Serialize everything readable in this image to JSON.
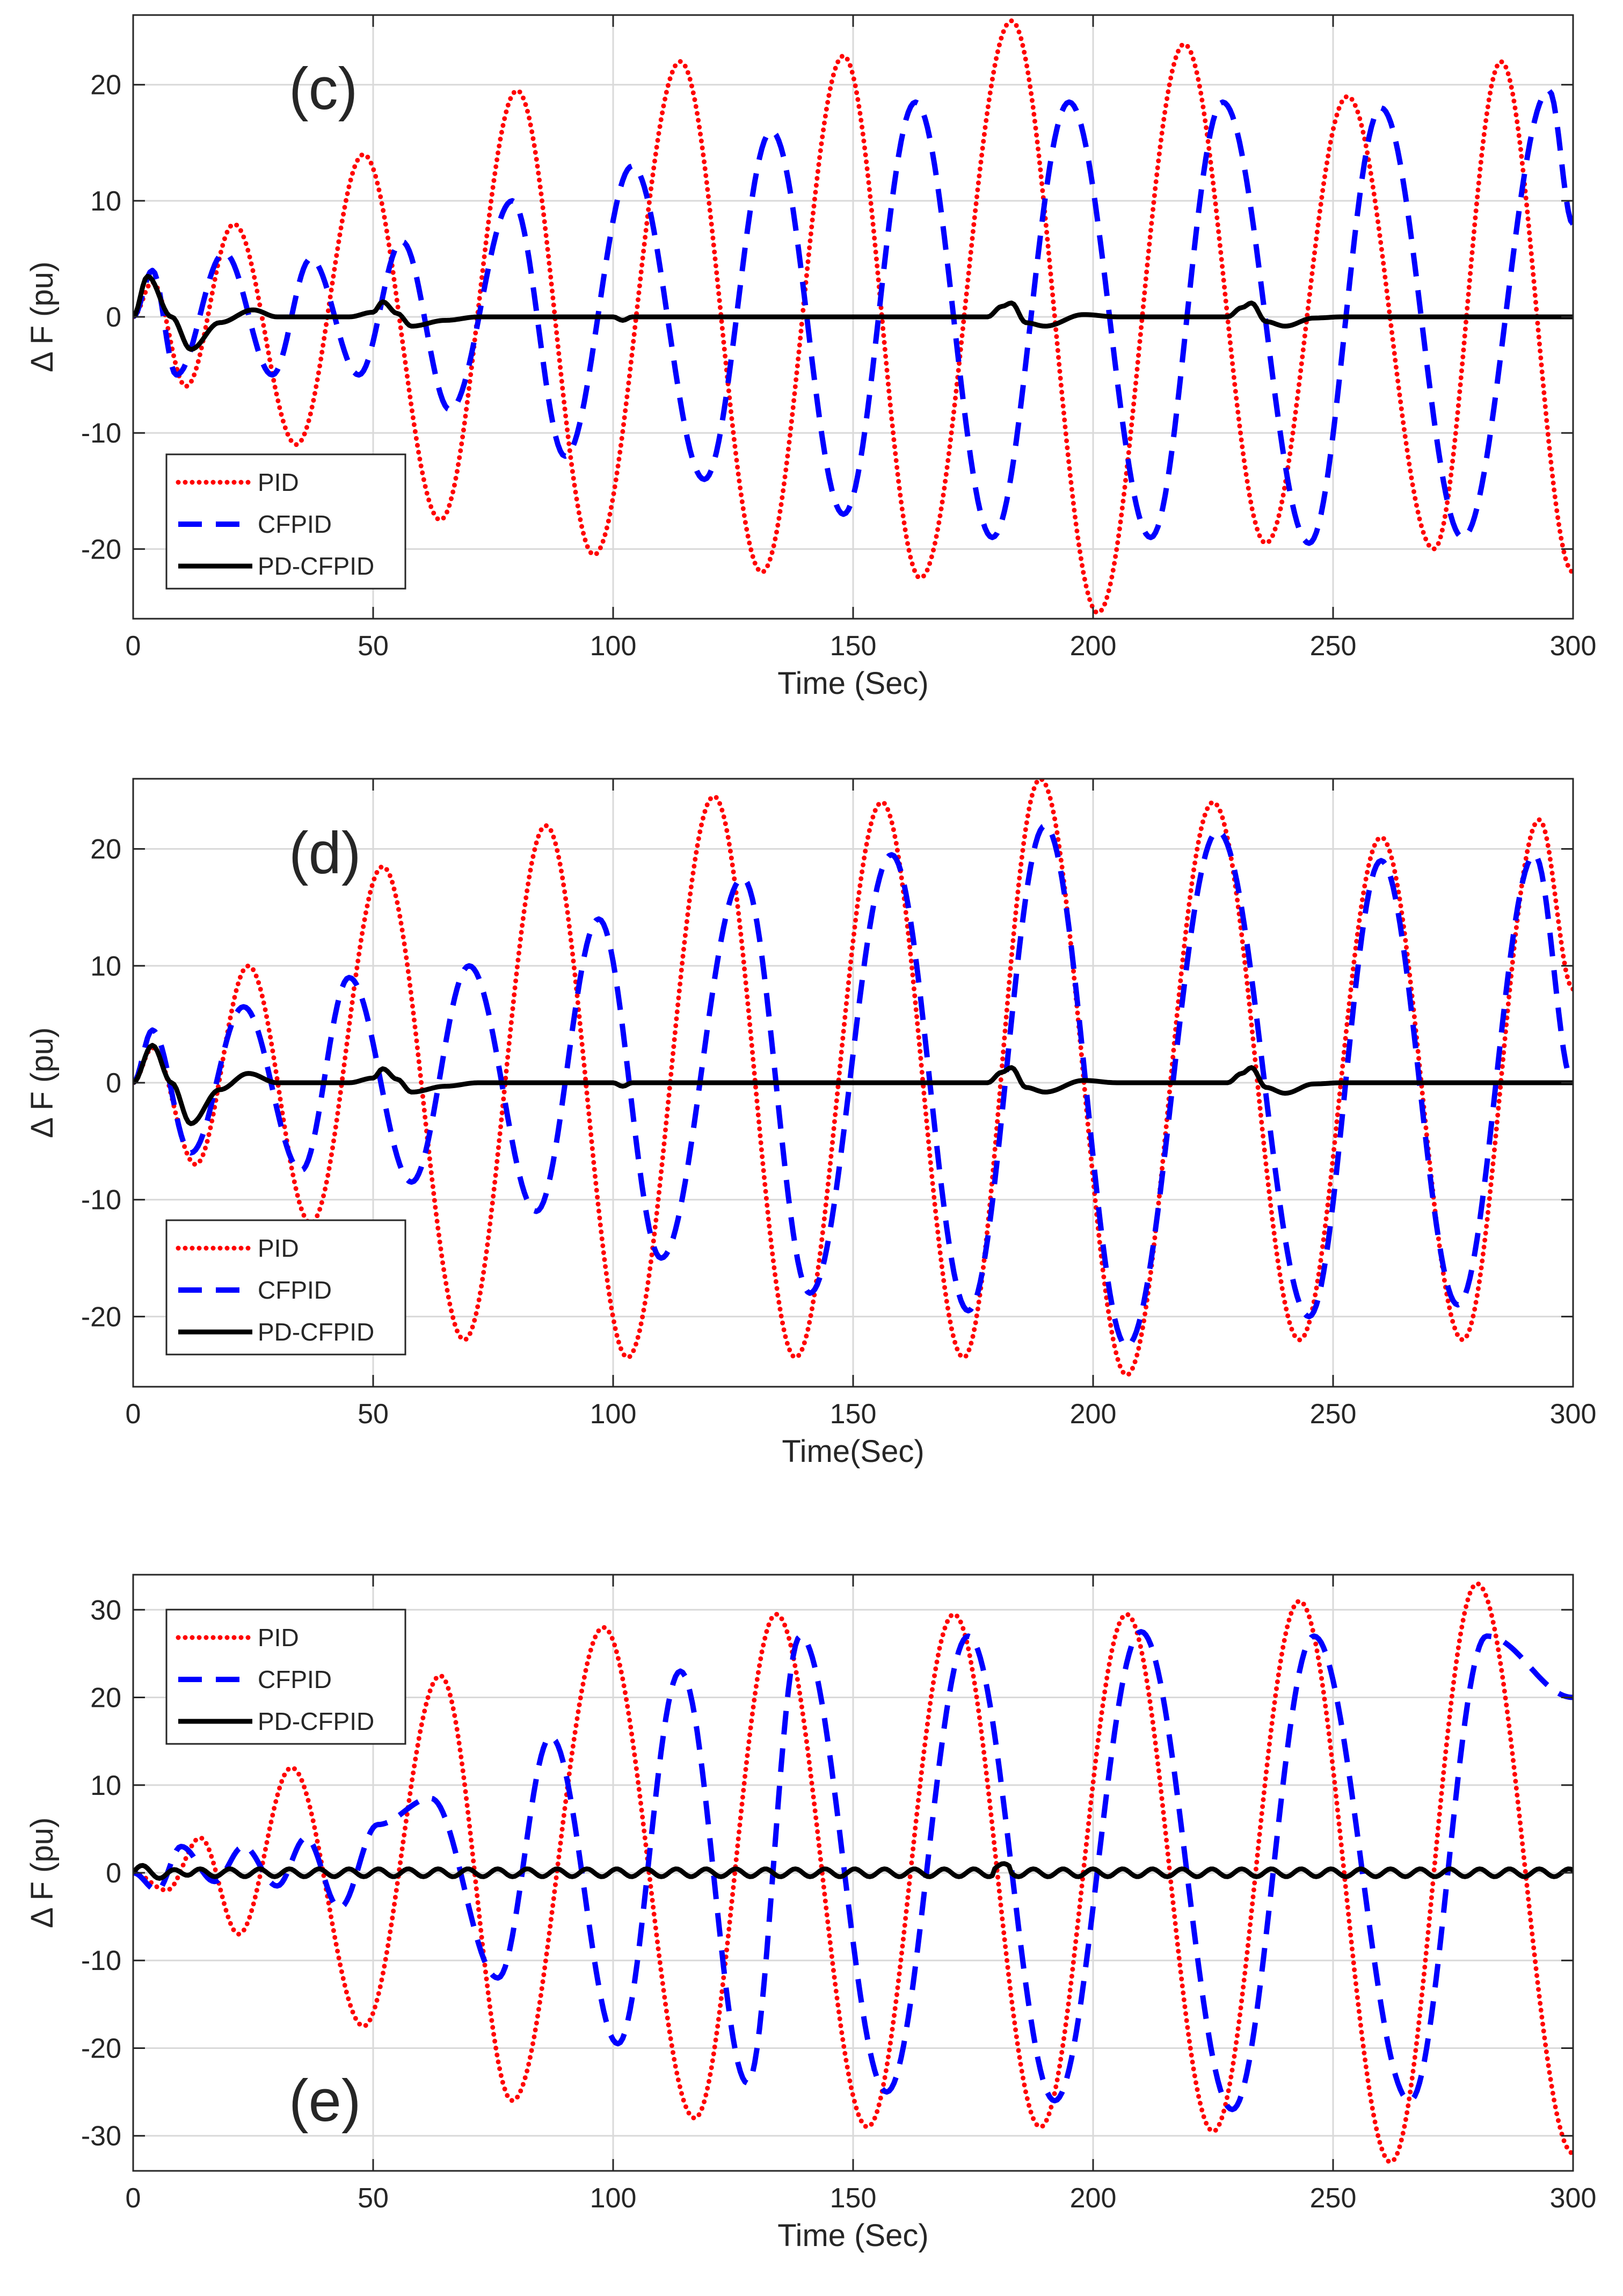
{
  "colors": {
    "pid": "#ff0000",
    "cfpid": "#0000ff",
    "pdcfpid": "#000000",
    "grid": "#d9d9d9",
    "axis": "#262626"
  },
  "chart_data": [
    {
      "type": "line",
      "panel_label": "(c)",
      "xlabel": "Time (Sec)",
      "ylabel": "Δ F (pu)",
      "xlim": [
        0,
        300
      ],
      "ylim": [
        -26,
        26
      ],
      "xticks": [
        0,
        50,
        100,
        150,
        200,
        250,
        300
      ],
      "yticks": [
        -20,
        -10,
        0,
        10,
        20
      ],
      "legend": {
        "position": "bottom-left",
        "entries": [
          "PID",
          "CFPID",
          "PD-CFPID"
        ]
      },
      "series": [
        {
          "name": "PID",
          "style": "dotted",
          "color": "#ff0000",
          "x": [
            0,
            4,
            11,
            21,
            34,
            48,
            64,
            80,
            96,
            114,
            131,
            148,
            164,
            183,
            201,
            219,
            236,
            253,
            271,
            285,
            300
          ],
          "y": [
            0,
            3,
            -6,
            8,
            -11,
            14,
            -17.5,
            19.5,
            -20.5,
            22,
            -22,
            22.5,
            -22.5,
            25.5,
            -25.5,
            23.5,
            -19.5,
            19,
            -20,
            22,
            -22
          ]
        },
        {
          "name": "CFPID",
          "style": "dashed",
          "color": "#0000ff",
          "x": [
            0,
            4,
            9,
            19,
            29,
            37,
            47,
            56,
            66,
            79,
            90,
            104,
            119,
            133,
            148,
            163,
            179,
            195,
            212,
            227,
            245,
            260,
            277,
            295,
            300
          ],
          "y": [
            0,
            4,
            -5,
            5.5,
            -5,
            5,
            -5,
            6.5,
            -8,
            10,
            -12,
            13,
            -14,
            16,
            -17,
            18.5,
            -19,
            18.5,
            -19,
            18.5,
            -19.5,
            18,
            -19,
            19.5,
            8
          ]
        },
        {
          "name": "PD-CFPID",
          "style": "solid",
          "color": "#000000",
          "x": [
            0,
            3,
            8,
            12,
            18,
            25,
            30,
            45,
            50,
            52,
            55,
            58,
            65,
            72,
            100,
            102,
            104,
            110,
            178,
            181,
            183,
            186,
            190,
            198,
            205,
            228,
            231,
            233,
            236,
            240,
            246,
            252,
            300
          ],
          "y": [
            0,
            3.5,
            0,
            -2.8,
            -0.5,
            0.6,
            0,
            0,
            0.4,
            1.3,
            0.3,
            -0.8,
            -0.3,
            0,
            0,
            -0.3,
            0,
            0,
            0,
            0.9,
            1.2,
            -0.5,
            -0.8,
            0.2,
            0,
            0,
            0.8,
            1.2,
            -0.4,
            -0.8,
            -0.1,
            0,
            0
          ]
        }
      ]
    },
    {
      "type": "line",
      "panel_label": "(d)",
      "xlabel": "Time(Sec)",
      "ylabel": "Δ F (pu)",
      "xlim": [
        0,
        300
      ],
      "ylim": [
        -26,
        26
      ],
      "xticks": [
        0,
        50,
        100,
        150,
        200,
        250,
        300
      ],
      "yticks": [
        -20,
        -10,
        0,
        10,
        20
      ],
      "legend": {
        "position": "bottom-left",
        "entries": [
          "PID",
          "CFPID",
          "PD-CFPID"
        ]
      },
      "series": [
        {
          "name": "PID",
          "style": "dotted",
          "color": "#ff0000",
          "x": [
            0,
            4,
            13,
            24,
            37,
            52,
            69,
            86,
            103,
            121,
            138,
            156,
            173,
            189,
            207,
            225,
            243,
            260,
            277,
            293,
            300
          ],
          "y": [
            0,
            3,
            -7,
            10,
            -12,
            18.5,
            -22,
            22,
            -23.5,
            24.5,
            -23.5,
            24,
            -23.5,
            26,
            -25,
            24,
            -22,
            21,
            -22,
            22.5,
            8
          ]
        },
        {
          "name": "CFPID",
          "style": "dashed",
          "color": "#0000ff",
          "x": [
            0,
            4,
            12,
            23,
            35,
            45,
            58,
            70,
            84,
            97,
            110,
            127,
            141,
            158,
            174,
            190,
            207,
            226,
            245,
            260,
            276,
            292,
            300
          ],
          "y": [
            0,
            4.5,
            -6,
            6.5,
            -7.5,
            9,
            -8.5,
            10,
            -11,
            14,
            -15,
            17.5,
            -18,
            19.5,
            -19.5,
            22,
            -22.5,
            21.5,
            -20,
            19,
            -19,
            19.5,
            0
          ]
        },
        {
          "name": "PD-CFPID",
          "style": "solid",
          "color": "#000000",
          "x": [
            0,
            4,
            8,
            12,
            18,
            24,
            30,
            45,
            50,
            52,
            55,
            58,
            65,
            72,
            100,
            102,
            104,
            110,
            178,
            181,
            183,
            186,
            190,
            198,
            205,
            228,
            231,
            233,
            236,
            240,
            246,
            252,
            300
          ],
          "y": [
            0,
            3.2,
            0,
            -3.5,
            -0.6,
            0.8,
            0,
            0,
            0.4,
            1.2,
            0.3,
            -0.8,
            -0.3,
            0,
            0,
            -0.3,
            0,
            0,
            0,
            0.9,
            1.3,
            -0.4,
            -0.8,
            0.2,
            0,
            0,
            0.8,
            1.3,
            -0.4,
            -0.9,
            -0.1,
            0,
            0
          ]
        }
      ]
    },
    {
      "type": "line",
      "panel_label": "(e)",
      "xlabel": "Time (Sec)",
      "ylabel": "Δ F (pu)",
      "xlim": [
        0,
        300
      ],
      "ylim": [
        -34,
        34
      ],
      "xticks": [
        0,
        50,
        100,
        150,
        200,
        250,
        300
      ],
      "yticks": [
        -30,
        -20,
        -10,
        0,
        10,
        20,
        30
      ],
      "legend": {
        "position": "top-left",
        "entries": [
          "PID",
          "CFPID",
          "PD-CFPID"
        ]
      },
      "series": [
        {
          "name": "PID",
          "style": "dotted",
          "color": "#ff0000",
          "x": [
            0,
            7,
            14,
            22,
            33,
            48,
            64,
            79,
            98,
            117,
            134,
            153,
            171,
            189,
            207,
            225,
            243,
            262,
            280,
            300
          ],
          "y": [
            0,
            -2,
            4,
            -7,
            12,
            -17.5,
            22.5,
            -26,
            28,
            -28,
            29.5,
            -29,
            29.5,
            -29,
            29.5,
            -29.5,
            31,
            -33,
            33,
            -32
          ]
        },
        {
          "name": "CFPID",
          "style": "dashed",
          "color": "#0000ff",
          "x": [
            0,
            5,
            10,
            17,
            23,
            30,
            36,
            43,
            51,
            62,
            76,
            87,
            101,
            114,
            128,
            139,
            157,
            174,
            192,
            210,
            229,
            246,
            266,
            282,
            300
          ],
          "y": [
            0,
            -2,
            3,
            -1,
            3,
            -1.5,
            4,
            -4,
            5.5,
            8.5,
            -12,
            15.5,
            -19.5,
            23,
            -24,
            27,
            -25,
            27,
            -26,
            27.5,
            -27,
            27,
            -26,
            27,
            20
          ]
        },
        {
          "name": "PD-CFPID",
          "style": "solid",
          "color": "#000000",
          "note": "small oscillation about 0",
          "x": [
            0,
            300
          ],
          "y": [
            0,
            0
          ]
        }
      ]
    }
  ]
}
